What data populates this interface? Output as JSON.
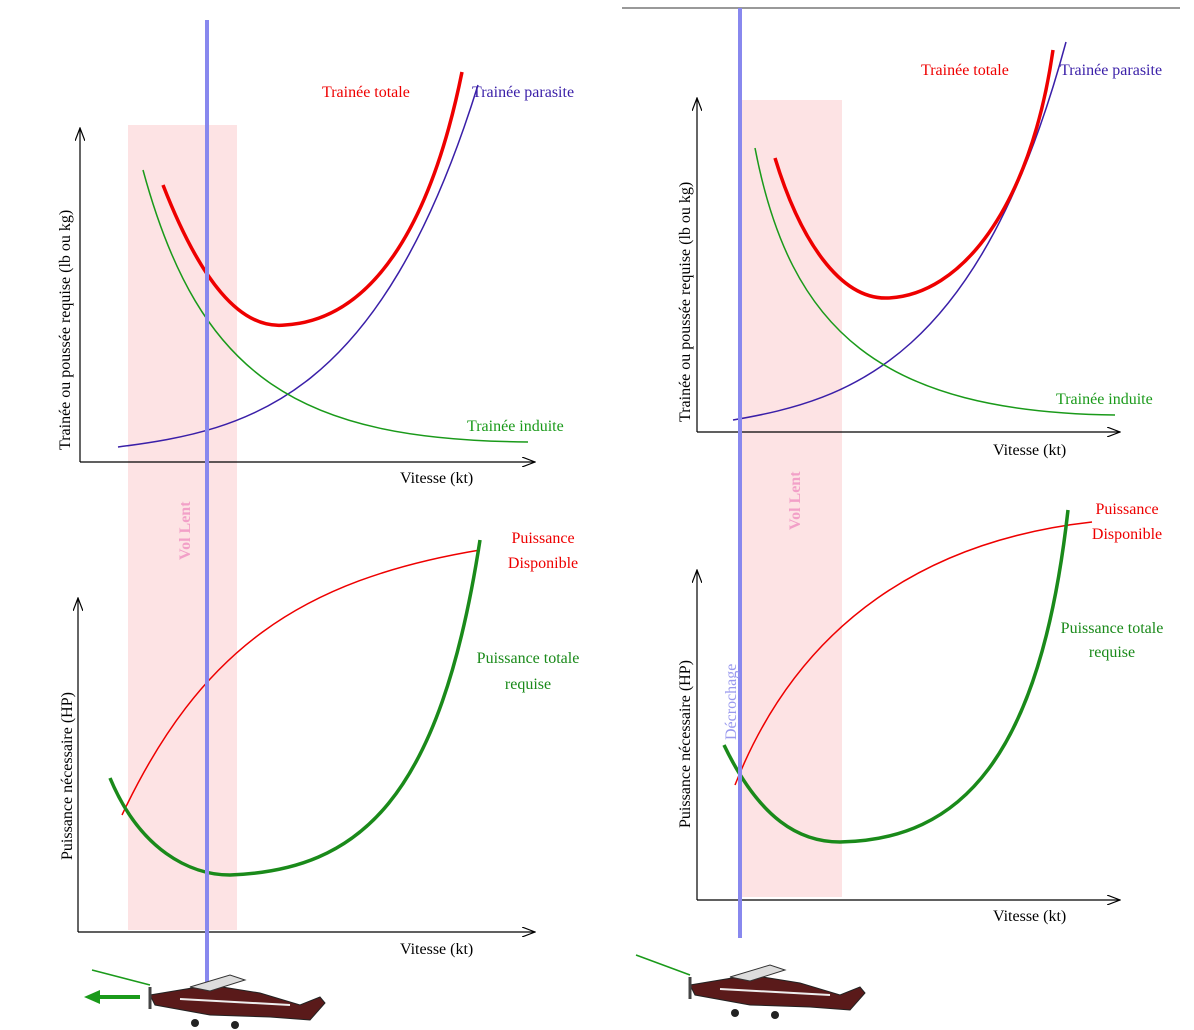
{
  "left": {
    "drag_chart": {
      "total_drag": "Trainée totale",
      "parasite_drag": "Trainée parasite",
      "induced_drag": "Trainée induite",
      "y_axis": "Trainée ou poussée requise (lb ou kg)",
      "x_axis": "Vitesse (kt)"
    },
    "zone_label": "Vol Lent",
    "power_chart": {
      "available": [
        "Puissance",
        "Disponible"
      ],
      "required": [
        "Puissance totale",
        "requise"
      ],
      "y_axis": "Puissance nécessaire (HP)",
      "x_axis": "Vitesse (kt)"
    }
  },
  "right": {
    "drag_chart": {
      "total_drag": "Trainée totale",
      "parasite_drag": "Trainée parasite",
      "induced_drag": "Trainée induite",
      "y_axis": "Trainée ou poussée requise (lb ou kg)",
      "x_axis": "Vitesse (kt)"
    },
    "zone_label": "Vol Lent",
    "stall_label": "Décrochage",
    "power_chart": {
      "available": [
        "Puissance",
        "Disponible"
      ],
      "required": [
        "Puissance totale",
        "requise"
      ],
      "y_axis": "Puissance nécessaire (HP)",
      "x_axis": "Vitesse (kt)"
    }
  }
}
